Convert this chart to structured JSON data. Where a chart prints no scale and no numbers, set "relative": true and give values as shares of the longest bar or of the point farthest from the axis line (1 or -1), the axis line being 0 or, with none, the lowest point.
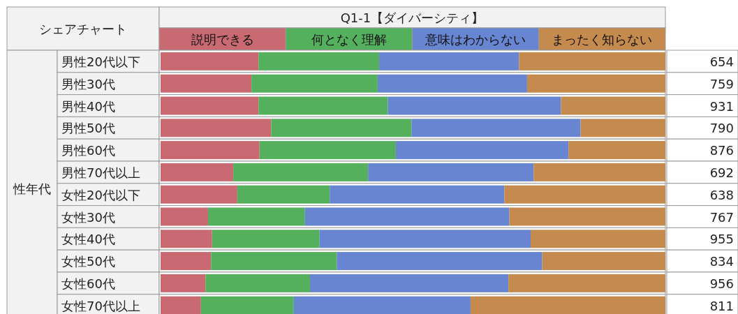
{
  "chart_data": {
    "type": "bar",
    "orientation": "horizontal",
    "stacked": true,
    "relative": true,
    "legend": "top",
    "title": "Q1-1【ダイバーシティ】",
    "subtitle": "シェアチャート",
    "ylabel": "性年代",
    "categories": [
      "男性20代以下",
      "男性30代",
      "男性40代",
      "男性50代",
      "男性60代",
      "男性70代以上",
      "女性20代以下",
      "女性30代",
      "女性40代",
      "女性50代",
      "女性60代",
      "女性70代以上"
    ],
    "series": [
      {
        "name": "説明できる",
        "color": "#c96a72",
        "values": [
          0.194,
          0.18,
          0.194,
          0.219,
          0.196,
          0.144,
          0.152,
          0.094,
          0.102,
          0.1,
          0.089,
          0.08
        ]
      },
      {
        "name": "何となく理解",
        "color": "#55b05e",
        "values": [
          0.239,
          0.25,
          0.256,
          0.278,
          0.27,
          0.267,
          0.183,
          0.192,
          0.213,
          0.249,
          0.207,
          0.184
        ]
      },
      {
        "name": "意味はわからない",
        "color": "#6785d0",
        "values": [
          0.277,
          0.296,
          0.343,
          0.335,
          0.342,
          0.328,
          0.346,
          0.405,
          0.418,
          0.407,
          0.393,
          0.35
        ]
      },
      {
        "name": "まったく知らない",
        "color": "#c58a4e",
        "values": [
          0.29,
          0.274,
          0.207,
          0.168,
          0.192,
          0.261,
          0.319,
          0.309,
          0.267,
          0.244,
          0.311,
          0.386
        ]
      }
    ],
    "annotations": [
      "654",
      "759",
      "931",
      "790",
      "876",
      "692",
      "638",
      "767",
      "955",
      "834",
      "956",
      "811"
    ]
  }
}
